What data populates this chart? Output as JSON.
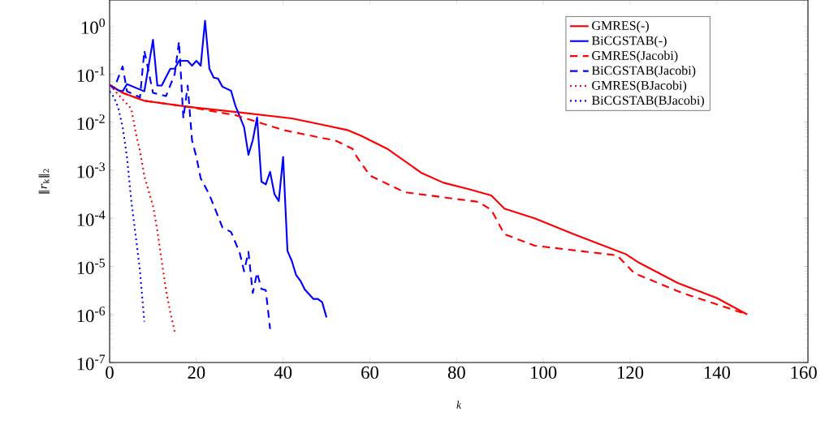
{
  "chart_data": {
    "type": "line",
    "xlabel": "k",
    "ylabel": "‖*r*$_{k}$‖$_{2}$",
    "log": "y",
    "grid": false,
    "legend": "top right",
    "xlim": [
      0,
      161
    ],
    "xticks": [
      0,
      20,
      40,
      60,
      80,
      100,
      120,
      140,
      160
    ],
    "ylim": [
      1e-07,
      3.5
    ],
    "yticks": [
      {
        "value": 1e-07,
        "label": "10$^{-7}$"
      },
      {
        "value": 1e-06,
        "label": "10$^{-6}$"
      },
      {
        "value": 1e-05,
        "label": "10$^{-5}$"
      },
      {
        "value": 0.0001,
        "label": "10$^{-4}$"
      },
      {
        "value": 0.001,
        "label": "10$^{-3}$"
      },
      {
        "value": 0.01,
        "label": "10$^{-2}$"
      },
      {
        "value": 0.1,
        "label": "10$^{-1}$"
      },
      {
        "value": 1,
        "label": "10$^{0}$"
      }
    ],
    "series": [
      {
        "name": "GMRES(-)",
        "color": "#ff0000",
        "line_style": "solid",
        "x": [
          0,
          3,
          8,
          18,
          30,
          42,
          49,
          55,
          58,
          64,
          72,
          77,
          83,
          88,
          91,
          98,
          107,
          119,
          122,
          131,
          140,
          147
        ],
        "values": [
          0.06,
          0.041,
          0.028,
          0.021,
          0.016,
          0.012,
          0.0089,
          0.0068,
          0.0052,
          0.0028,
          0.00087,
          0.00055,
          0.0004,
          0.0003,
          0.00016,
          0.0001,
          4.7e-05,
          1.8e-05,
          1.2e-05,
          4.5e-06,
          2.2e-06,
          1e-06
        ]
      },
      {
        "name": "BiCGSTAB(-)",
        "color": "#0000ff",
        "line_style": "solid",
        "x": [
          0,
          2,
          3,
          4,
          8,
          10,
          11,
          12,
          14,
          15,
          16,
          18,
          19,
          20,
          21,
          22,
          23,
          24,
          25,
          26,
          28,
          29,
          31,
          32,
          33,
          34,
          35,
          36,
          37,
          38,
          39,
          40,
          41,
          42,
          43,
          44,
          45,
          47,
          48,
          49,
          50
        ],
        "values": [
          0.06,
          0.046,
          0.044,
          0.062,
          0.044,
          0.52,
          0.058,
          0.058,
          0.13,
          0.13,
          0.19,
          0.19,
          0.15,
          0.19,
          0.15,
          1.3,
          0.13,
          0.085,
          0.081,
          0.055,
          0.045,
          0.022,
          0.0079,
          0.0021,
          0.0042,
          0.0126,
          0.00058,
          0.00051,
          0.00093,
          0.00032,
          0.00023,
          0.0019,
          2.1e-05,
          1.3e-05,
          6.6e-06,
          5e-06,
          3.3e-06,
          2.1e-06,
          2.1e-06,
          1.8e-06,
          8.7e-07
        ]
      },
      {
        "name": "GMRES(Jacobi)",
        "color": "#ff0000",
        "line_style": "dashed",
        "x": [
          0,
          3,
          8,
          18,
          29,
          40,
          49,
          52,
          56,
          57,
          60,
          68,
          85,
          88,
          91,
          98,
          117,
          121,
          132,
          147
        ],
        "values": [
          0.06,
          0.041,
          0.028,
          0.021,
          0.014,
          0.0069,
          0.0047,
          0.0042,
          0.0028,
          0.0019,
          0.00078,
          0.00035,
          0.00022,
          0.00015,
          4.7e-05,
          2.7e-05,
          1.7e-05,
          7.2e-06,
          2.8e-06,
          1e-06
        ]
      },
      {
        "name": "BiCGSTAB(Jacobi)",
        "color": "#0000ff",
        "line_style": "dashed",
        "x": [
          0,
          1,
          3,
          4,
          7,
          8,
          10,
          13,
          15,
          16,
          17,
          18,
          19,
          20,
          21,
          23,
          25,
          26,
          28,
          30,
          31,
          32,
          33,
          34,
          35,
          36,
          37
        ],
        "values": [
          0.06,
          0.05,
          0.145,
          0.044,
          0.033,
          0.31,
          0.041,
          0.035,
          0.1,
          0.48,
          0.012,
          0.058,
          0.0042,
          0.0019,
          0.00068,
          0.00031,
          0.00011,
          6.5e-05,
          5.2e-05,
          1.9e-05,
          7.9e-06,
          2e-05,
          2.8e-06,
          7.4e-06,
          3.4e-06,
          3.2e-06,
          5e-07
        ]
      },
      {
        "name": "GMRES(BJacobi)",
        "color": "#ff0000",
        "line_style": "dotted",
        "x": [
          0,
          3,
          4,
          5,
          6,
          7,
          8,
          10,
          11,
          12,
          13,
          14,
          15
        ],
        "values": [
          0.06,
          0.03,
          0.024,
          0.019,
          0.0062,
          0.0025,
          0.00076,
          0.00018,
          5.6e-05,
          1.3e-05,
          3.2e-06,
          1.1e-06,
          4.4e-07
        ]
      },
      {
        "name": "BiCGSTAB(BJacobi)",
        "color": "#0000ff",
        "line_style": "dotted",
        "x": [
          0,
          1,
          2,
          3,
          4,
          5,
          6,
          7,
          8
        ],
        "values": [
          0.044,
          0.033,
          0.02,
          0.0079,
          0.0019,
          0.00023,
          4.4e-05,
          8.1e-06,
          7.1e-07
        ]
      }
    ]
  }
}
